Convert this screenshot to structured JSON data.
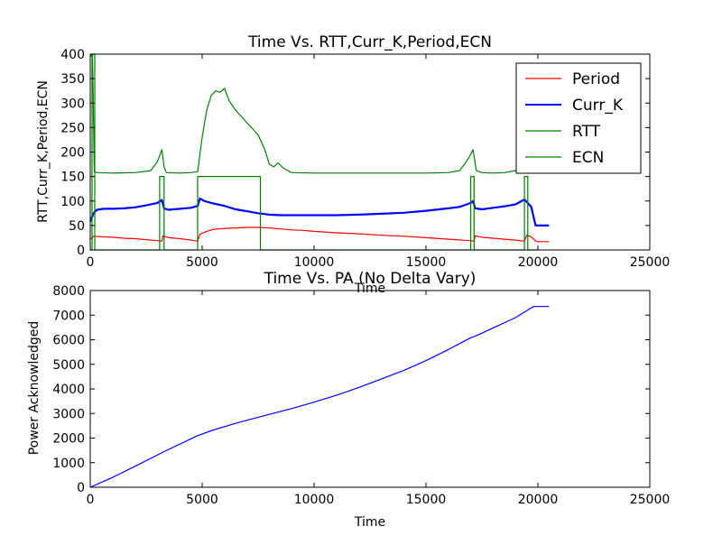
{
  "chart_data": [
    {
      "type": "line",
      "title": "Time Vs. RTT,Curr_K,Period,ECN",
      "xlabel": "Time",
      "ylabel": "RTT,Curr_K,Period,ECN",
      "xlim": [
        0,
        25000
      ],
      "ylim": [
        0,
        400
      ],
      "xticks": [
        "0",
        "5000",
        "10000",
        "15000",
        "20000",
        "25000"
      ],
      "yticks": [
        "0",
        "50",
        "100",
        "150",
        "200",
        "250",
        "300",
        "350",
        "400"
      ],
      "legend_position": "top-right",
      "series": [
        {
          "name": "Period",
          "color": "#ff0000",
          "points": [
            [
              0,
              22
            ],
            [
              150,
              28
            ],
            [
              500,
              27
            ],
            [
              1000,
              26
            ],
            [
              1500,
              24
            ],
            [
              2000,
              23
            ],
            [
              2500,
              21
            ],
            [
              3000,
              19
            ],
            [
              3200,
              18
            ],
            [
              3250,
              29
            ],
            [
              3500,
              25
            ],
            [
              4000,
              23
            ],
            [
              4500,
              20
            ],
            [
              4800,
              18
            ],
            [
              4900,
              32
            ],
            [
              5200,
              38
            ],
            [
              5500,
              42
            ],
            [
              6000,
              44
            ],
            [
              6500,
              45
            ],
            [
              7000,
              46
            ],
            [
              7500,
              46
            ],
            [
              8000,
              45
            ],
            [
              8500,
              43
            ],
            [
              9000,
              41
            ],
            [
              9500,
              40
            ],
            [
              10000,
              38
            ],
            [
              11000,
              35
            ],
            [
              12000,
              33
            ],
            [
              13000,
              30
            ],
            [
              14000,
              28
            ],
            [
              15000,
              25
            ],
            [
              16000,
              22
            ],
            [
              17000,
              19
            ],
            [
              17150,
              18
            ],
            [
              17200,
              29
            ],
            [
              17500,
              26
            ],
            [
              18000,
              24
            ],
            [
              18500,
              22
            ],
            [
              19000,
              20
            ],
            [
              19400,
              18
            ],
            [
              19500,
              30
            ],
            [
              19700,
              27
            ],
            [
              19900,
              18
            ],
            [
              20000,
              17
            ],
            [
              20500,
              17
            ]
          ]
        },
        {
          "name": "Curr_K",
          "color": "#0000ff",
          "points": [
            [
              0,
              58
            ],
            [
              150,
              75
            ],
            [
              300,
              82
            ],
            [
              600,
              84
            ],
            [
              1000,
              84
            ],
            [
              1500,
              85
            ],
            [
              2000,
              87
            ],
            [
              2500,
              91
            ],
            [
              3000,
              96
            ],
            [
              3200,
              102
            ],
            [
              3300,
              85
            ],
            [
              3500,
              82
            ],
            [
              4000,
              84
            ],
            [
              4500,
              86
            ],
            [
              4800,
              90
            ],
            [
              4900,
              105
            ],
            [
              5100,
              100
            ],
            [
              5500,
              95
            ],
            [
              6000,
              90
            ],
            [
              6500,
              83
            ],
            [
              7000,
              79
            ],
            [
              7500,
              75
            ],
            [
              8000,
              72
            ],
            [
              8500,
              71
            ],
            [
              9000,
              71
            ],
            [
              10000,
              71
            ],
            [
              11000,
              71
            ],
            [
              12000,
              72
            ],
            [
              13000,
              74
            ],
            [
              14000,
              76
            ],
            [
              15000,
              80
            ],
            [
              16000,
              85
            ],
            [
              16500,
              88
            ],
            [
              17000,
              96
            ],
            [
              17100,
              100
            ],
            [
              17200,
              85
            ],
            [
              17500,
              83
            ],
            [
              18000,
              86
            ],
            [
              18500,
              89
            ],
            [
              19000,
              93
            ],
            [
              19400,
              103
            ],
            [
              19500,
              98
            ],
            [
              19700,
              88
            ],
            [
              19900,
              50
            ],
            [
              20500,
              50
            ]
          ]
        },
        {
          "name": "RTT",
          "color": "#008000",
          "points": [
            [
              0,
              395
            ],
            [
              100,
              400
            ],
            [
              180,
              160
            ],
            [
              300,
              158
            ],
            [
              1000,
              157
            ],
            [
              2000,
              158
            ],
            [
              2700,
              162
            ],
            [
              3000,
              180
            ],
            [
              3200,
              205
            ],
            [
              3300,
              170
            ],
            [
              3400,
              158
            ],
            [
              4000,
              157
            ],
            [
              4500,
              158
            ],
            [
              4800,
              160
            ],
            [
              5000,
              230
            ],
            [
              5200,
              285
            ],
            [
              5400,
              315
            ],
            [
              5600,
              325
            ],
            [
              5800,
              322
            ],
            [
              6000,
              330
            ],
            [
              6200,
              305
            ],
            [
              6500,
              285
            ],
            [
              7000,
              260
            ],
            [
              7500,
              235
            ],
            [
              7800,
              205
            ],
            [
              8000,
              175
            ],
            [
              8200,
              170
            ],
            [
              8400,
              178
            ],
            [
              8600,
              168
            ],
            [
              9000,
              158
            ],
            [
              10000,
              157
            ],
            [
              12000,
              157
            ],
            [
              14000,
              157
            ],
            [
              15000,
              157
            ],
            [
              16000,
              158
            ],
            [
              16500,
              162
            ],
            [
              16800,
              180
            ],
            [
              17000,
              195
            ],
            [
              17100,
              205
            ],
            [
              17250,
              162
            ],
            [
              17500,
              158
            ],
            [
              18000,
              157
            ],
            [
              18500,
              158
            ],
            [
              19000,
              162
            ],
            [
              19200,
              170
            ],
            [
              19300,
              180
            ]
          ]
        },
        {
          "name": "ECN",
          "color": "#008000",
          "points": [
            [
              0,
              0
            ],
            [
              80,
              0
            ],
            [
              80,
              400
            ],
            [
              200,
              400
            ],
            [
              200,
              0
            ],
            [
              3100,
              0
            ],
            [
              3100,
              150
            ],
            [
              3300,
              150
            ],
            [
              3300,
              0
            ],
            [
              4800,
              0
            ],
            [
              4800,
              150
            ],
            [
              7600,
              150
            ],
            [
              7600,
              0
            ],
            [
              17000,
              0
            ],
            [
              17000,
              150
            ],
            [
              17150,
              150
            ],
            [
              17150,
              0
            ],
            [
              19400,
              0
            ],
            [
              19400,
              150
            ],
            [
              19550,
              150
            ],
            [
              19550,
              0
            ],
            [
              20000,
              0
            ]
          ]
        }
      ]
    },
    {
      "type": "line",
      "title": "Time Vs. PA (No Delta Vary)",
      "xlabel": "Time",
      "ylabel": "Power Acknowledged",
      "xlim": [
        0,
        25000
      ],
      "ylim": [
        0,
        8000
      ],
      "xticks": [
        "0",
        "5000",
        "10000",
        "15000",
        "20000",
        "25000"
      ],
      "yticks": [
        "0",
        "1000",
        "2000",
        "3000",
        "4000",
        "5000",
        "6000",
        "7000",
        "8000"
      ],
      "series": [
        {
          "color": "#0000ff",
          "points": [
            [
              0,
              0
            ],
            [
              1000,
              400
            ],
            [
              2000,
              850
            ],
            [
              3300,
              1450
            ],
            [
              4800,
              2100
            ],
            [
              5500,
              2330
            ],
            [
              6500,
              2600
            ],
            [
              7600,
              2870
            ],
            [
              9000,
              3200
            ],
            [
              10000,
              3460
            ],
            [
              11000,
              3740
            ],
            [
              12000,
              4060
            ],
            [
              13000,
              4400
            ],
            [
              14000,
              4750
            ],
            [
              15000,
              5150
            ],
            [
              16000,
              5600
            ],
            [
              17000,
              6080
            ],
            [
              17300,
              6180
            ],
            [
              18000,
              6480
            ],
            [
              19000,
              6900
            ],
            [
              19800,
              7350
            ],
            [
              20500,
              7350
            ]
          ]
        }
      ]
    }
  ]
}
